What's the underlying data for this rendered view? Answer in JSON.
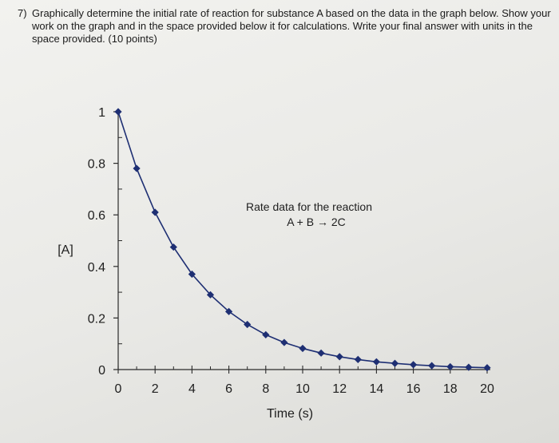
{
  "question": {
    "number": "7)",
    "text": "Graphically determine the initial rate of reaction for substance A based on the data in the graph below. Show your work on the graph and in the space provided below it for calculations. Write your final answer with units in the space provided. (10 points)"
  },
  "chart_data": {
    "type": "line",
    "title": "Rate data for the reaction",
    "subtitle": "A + B → 2C",
    "xlabel": "Time (s)",
    "ylabel": "[A]",
    "xlim": [
      0,
      20
    ],
    "ylim": [
      0,
      1
    ],
    "x_ticks": [
      "0",
      "2",
      "4",
      "6",
      "8",
      "10",
      "12",
      "14",
      "16",
      "18",
      "20"
    ],
    "y_ticks": [
      "0",
      "0.2",
      "0.4",
      "0.6",
      "0.8",
      "1"
    ],
    "grid": false,
    "marker": "diamond",
    "color": "#1e2f73",
    "series": [
      {
        "x": [
          0,
          1,
          2,
          3,
          4,
          5,
          6,
          7,
          8,
          9,
          10,
          11,
          12,
          13,
          14,
          15,
          16,
          17,
          18,
          19,
          20
        ],
        "y": [
          1.0,
          0.78,
          0.61,
          0.475,
          0.37,
          0.29,
          0.225,
          0.175,
          0.135,
          0.105,
          0.082,
          0.064,
          0.05,
          0.039,
          0.03,
          0.024,
          0.019,
          0.015,
          0.011,
          0.009,
          0.007
        ]
      }
    ]
  }
}
